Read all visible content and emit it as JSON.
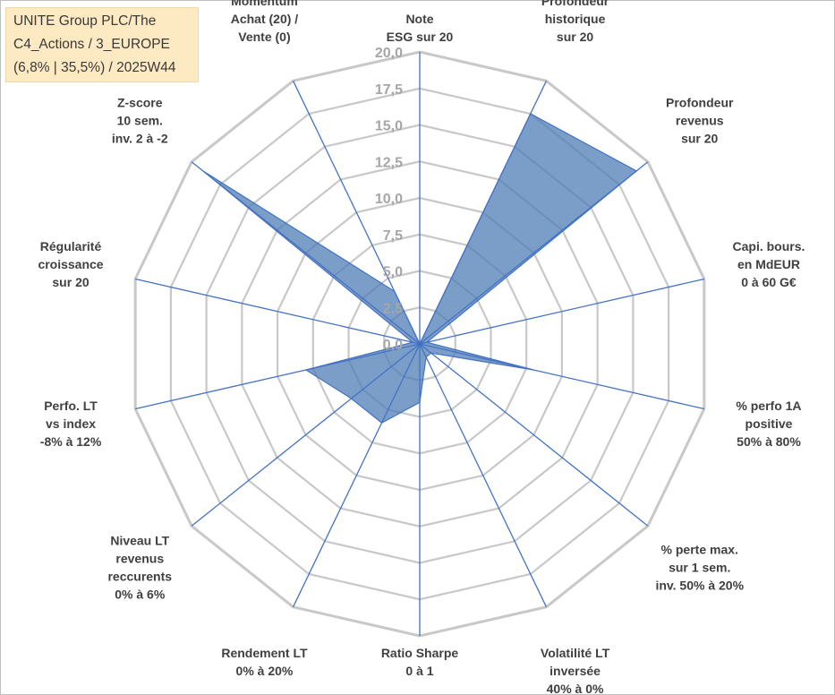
{
  "title_lines": [
    "UNITE Group PLC/The",
    "C4_Actions / 3_EUROPE",
    "(6,8% | 35,5%) / 2025W44"
  ],
  "colors": {
    "grid": "#c8c8c8",
    "spoke": "#4472c4",
    "fill": "#4f7db5",
    "fill_opacity": "0.75",
    "outline": "#4472c4",
    "title_bg": "#fde9c2"
  },
  "chart_data": {
    "type": "radar",
    "rmin": 0,
    "rmax": 20,
    "step": 2.5,
    "ticks": [
      "0,0",
      "2,5",
      "5,0",
      "7,5",
      "10,0",
      "12,5",
      "15,0",
      "17,5",
      "20,0"
    ],
    "axes": [
      {
        "label": [
          "Note",
          "ESG sur 20"
        ],
        "value": 0
      },
      {
        "label": [
          "Profondeur",
          "historique",
          "sur 20"
        ],
        "value": 17.5
      },
      {
        "label": [
          "Profondeur",
          "revenus",
          "sur 20"
        ],
        "value": 19
      },
      {
        "label": [
          "Capi. bours.",
          "en MdEUR",
          "0 à 60 G€"
        ],
        "value": 0.5
      },
      {
        "label": [
          "% perfo 1A",
          "positive",
          "50% à 80%"
        ],
        "value": 8
      },
      {
        "label": [
          "% perte max.",
          "sur 1 sem.",
          "inv. 50% à 20%"
        ],
        "value": 1
      },
      {
        "label": [
          "Volatilité LT",
          "inversée",
          "40% à 0%"
        ],
        "value": 1
      },
      {
        "label": [
          "Ratio Sharpe",
          "0 à 1"
        ],
        "value": 4
      },
      {
        "label": [
          "Rendement LT",
          "0% à 20%"
        ],
        "value": 6
      },
      {
        "label": [
          "Niveau LT",
          "revenus",
          "reccurents",
          "0% à 6%"
        ],
        "value": 6
      },
      {
        "label": [
          "Perfo. LT",
          "vs index",
          "-8% à 12%"
        ],
        "value": 8
      },
      {
        "label": [
          "Régularité",
          "croissance",
          "sur 20"
        ],
        "value": 0.5
      },
      {
        "label": [
          "Z-score",
          "10 sem.",
          "inv. 2 à -2"
        ],
        "value": 19
      },
      {
        "label": [
          "Momentum",
          "Achat (20) /",
          "Vente (0)"
        ],
        "value": 4
      }
    ]
  }
}
